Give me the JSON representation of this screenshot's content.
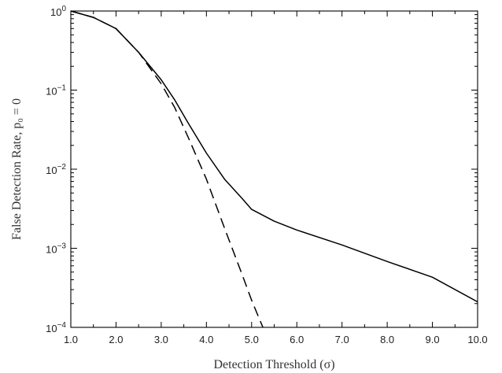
{
  "chart_data": {
    "type": "line",
    "title": "",
    "xlabel": "Detection Threshold (σ)",
    "ylabel": "False Detection Rate, p₀ = 0",
    "xlim": [
      1.0,
      10.0
    ],
    "ylim": [
      0.0001,
      1
    ],
    "yscale": "log",
    "grid": false,
    "x_ticks": [
      {
        "value": 1,
        "label": "1.0"
      },
      {
        "value": 2,
        "label": "2.0"
      },
      {
        "value": 3,
        "label": "3.0"
      },
      {
        "value": 4,
        "label": "4.0"
      },
      {
        "value": 5,
        "label": "5.0"
      },
      {
        "value": 6,
        "label": "6.0"
      },
      {
        "value": 7,
        "label": "7.0"
      },
      {
        "value": 8,
        "label": "8.0"
      },
      {
        "value": 9,
        "label": "9.0"
      },
      {
        "value": 10,
        "label": "10.0"
      }
    ],
    "y_ticks": [
      {
        "value": 1,
        "base": "10",
        "exp": "0"
      },
      {
        "value": 0.1,
        "base": "10",
        "exp": "−1"
      },
      {
        "value": 0.01,
        "base": "10",
        "exp": "−2"
      },
      {
        "value": 0.001,
        "base": "10",
        "exp": "−3"
      },
      {
        "value": 0.0001,
        "base": "10",
        "exp": "−4"
      }
    ],
    "series": [
      {
        "style": "solid",
        "color": "#000000",
        "x": [
          1.0,
          1.5,
          2.0,
          2.5,
          3.0,
          3.3,
          3.6,
          4.0,
          4.4,
          4.8,
          5.0,
          5.5,
          6.0,
          7.0,
          8.0,
          9.0,
          10.0
        ],
        "y": [
          1.0,
          0.83,
          0.6,
          0.3,
          0.135,
          0.075,
          0.038,
          0.016,
          0.0075,
          0.0042,
          0.0031,
          0.0022,
          0.0017,
          0.0011,
          0.00068,
          0.00043,
          0.00021
        ]
      },
      {
        "style": "dashed",
        "color": "#000000",
        "x": [
          1.0,
          1.5,
          2.0,
          2.5,
          3.0,
          3.3,
          3.6,
          4.0,
          4.4,
          4.8,
          5.0,
          5.25
        ],
        "y": [
          1.0,
          0.83,
          0.6,
          0.3,
          0.12,
          0.06,
          0.025,
          0.0075,
          0.0018,
          0.00045,
          0.00022,
          0.0001
        ]
      }
    ]
  }
}
